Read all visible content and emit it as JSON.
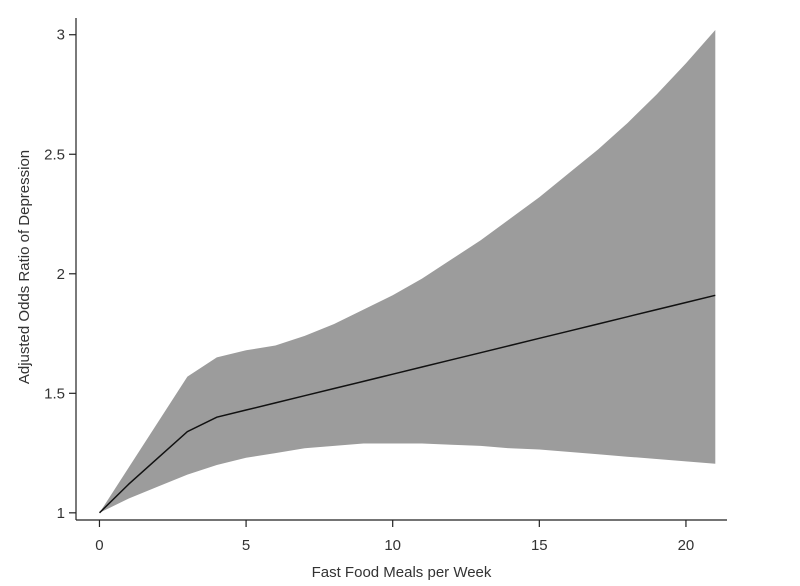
{
  "chart_data": {
    "type": "area",
    "title": "",
    "xlabel": "Fast Food Meals per Week",
    "ylabel": "Adjusted Odds Ratio of Depression",
    "xlim": [
      -0.8,
      21.4
    ],
    "ylim": [
      0.97,
      3.07
    ],
    "xticks": [
      0,
      5,
      10,
      15,
      20
    ],
    "yticks": [
      1,
      1.5,
      2,
      2.5,
      3
    ],
    "xtick_labels": [
      "0",
      "5",
      "10",
      "15",
      "20"
    ],
    "ytick_labels": [
      "1",
      "1.5",
      "2",
      "2.5",
      "3"
    ],
    "grid": false,
    "legend": "none",
    "series": [
      {
        "role": "estimate",
        "color": "#111111",
        "x": [
          0,
          1,
          2,
          3,
          4,
          5,
          6,
          7,
          8,
          9,
          10,
          11,
          12,
          13,
          14,
          15,
          16,
          17,
          18,
          19,
          20,
          21
        ],
        "y": [
          1.0,
          1.12,
          1.23,
          1.34,
          1.4,
          1.43,
          1.46,
          1.49,
          1.52,
          1.55,
          1.58,
          1.61,
          1.64,
          1.67,
          1.7,
          1.73,
          1.76,
          1.79,
          1.82,
          1.85,
          1.88,
          1.91
        ]
      },
      {
        "role": "confidence-interval",
        "color": "#9c9c9c",
        "x": [
          0,
          1,
          2,
          3,
          4,
          5,
          6,
          7,
          8,
          9,
          10,
          11,
          12,
          13,
          14,
          15,
          16,
          17,
          18,
          19,
          20,
          21
        ],
        "lower": [
          1.0,
          1.06,
          1.11,
          1.16,
          1.2,
          1.23,
          1.25,
          1.27,
          1.28,
          1.29,
          1.29,
          1.29,
          1.285,
          1.28,
          1.27,
          1.265,
          1.255,
          1.245,
          1.235,
          1.225,
          1.215,
          1.205
        ],
        "upper": [
          1.0,
          1.19,
          1.38,
          1.57,
          1.65,
          1.68,
          1.7,
          1.74,
          1.79,
          1.85,
          1.91,
          1.98,
          2.06,
          2.14,
          2.23,
          2.32,
          2.42,
          2.52,
          2.63,
          2.75,
          2.88,
          3.02
        ]
      }
    ]
  }
}
